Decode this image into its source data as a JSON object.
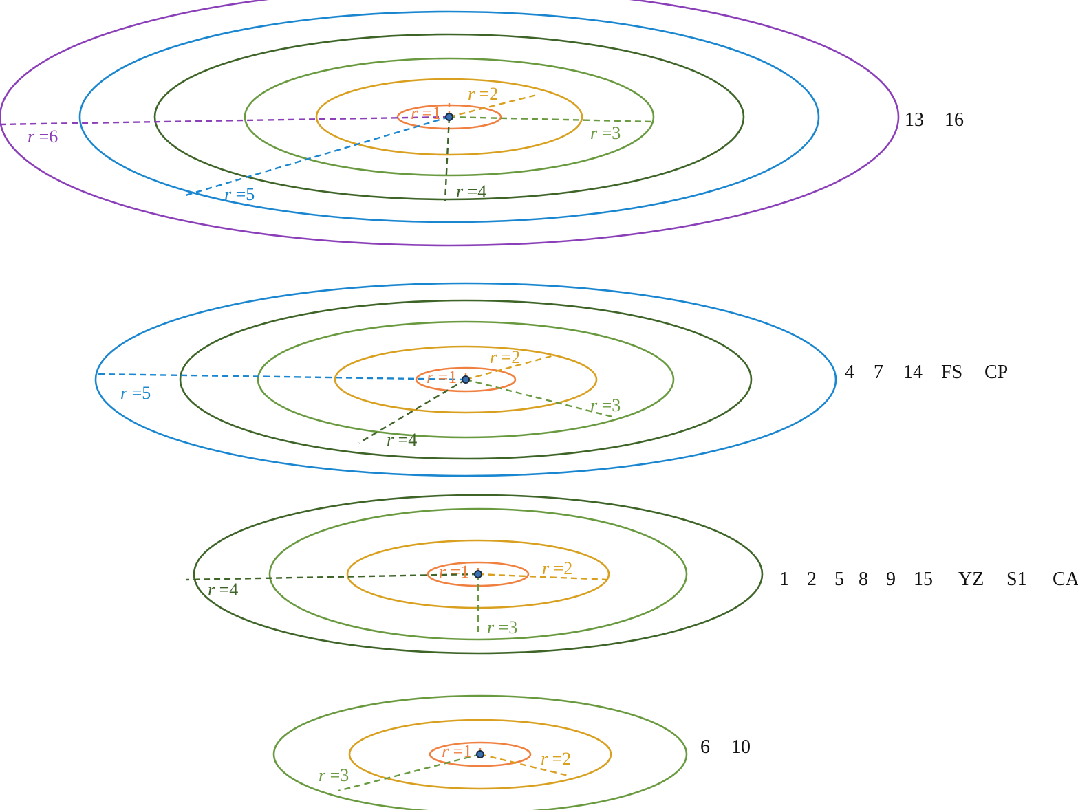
{
  "colors": {
    "1": "#f08040",
    "2": "#d9a020",
    "3": "#6a9a40",
    "4": "#3e6428",
    "5": "#1a86d0",
    "6": "#8a3fb8",
    "center": "#1a2a40"
  },
  "radius_label_prefix": "r",
  "groups": [
    {
      "max_radius": 6,
      "members": [
        "13",
        "16"
      ],
      "radii": [
        "1",
        "2",
        "3",
        "4",
        "5",
        "6"
      ],
      "labels": {
        "1": "=1",
        "2": "=2",
        "3": "=3",
        "4": "=4",
        "5": "=5",
        "6": "=6"
      }
    },
    {
      "max_radius": 5,
      "members": [
        "4",
        "7",
        "14",
        "FS",
        "CP"
      ],
      "radii": [
        "1",
        "2",
        "3",
        "4",
        "5"
      ],
      "labels": {
        "1": "=1",
        "2": "=2",
        "3": "=3",
        "4": "=4",
        "5": "=5"
      }
    },
    {
      "max_radius": 4,
      "members": [
        "1",
        "2",
        "5",
        "8",
        "9",
        "15",
        "YZ",
        "S1",
        "CA"
      ],
      "radii": [
        "1",
        "2",
        "3",
        "4"
      ],
      "labels": {
        "1": "=1",
        "2": "=2",
        "3": "=3",
        "4": "=4"
      }
    },
    {
      "max_radius": 3,
      "members": [
        "6",
        "10"
      ],
      "radii": [
        "1",
        "2",
        "3"
      ],
      "labels": {
        "1": "=1",
        "2": "=2",
        "3": "=3"
      }
    }
  ]
}
